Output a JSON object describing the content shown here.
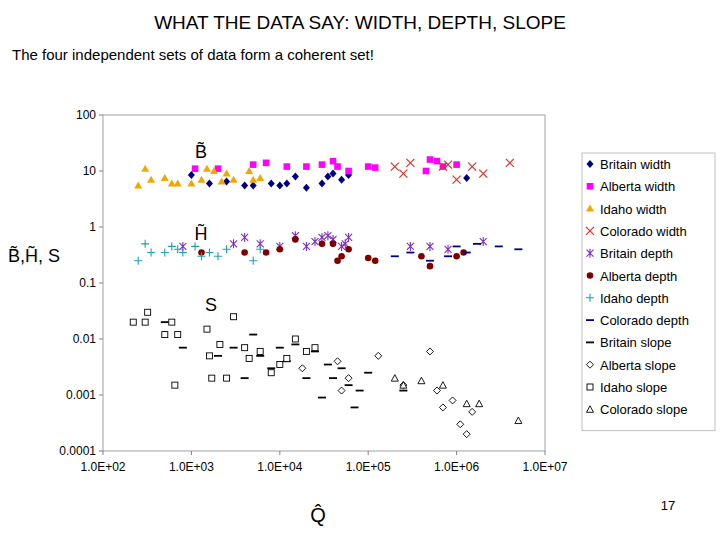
{
  "chart_data": {
    "type": "scatter",
    "title": "WHAT THE DATA SAY: WIDTH, DEPTH, SLOPE",
    "subtitle": "The four independent sets of data form a coherent set!",
    "x_label": "Q̂",
    "y_label": "B̃,H̃, S",
    "annotations": [
      "B̃",
      "H̃",
      "S"
    ],
    "page_number": "17",
    "log": true,
    "grid": false,
    "legend": "right",
    "xlim": [
      100,
      10000000
    ],
    "ylim": [
      0.0001,
      100
    ],
    "xticks": [
      {
        "value": 100,
        "label": "1.0E+02"
      },
      {
        "value": 1000,
        "label": "1.0E+03"
      },
      {
        "value": 10000,
        "label": "1.0E+04"
      },
      {
        "value": 100000,
        "label": "1.0E+05"
      },
      {
        "value": 1000000,
        "label": "1.0E+06"
      },
      {
        "value": 10000000,
        "label": "1.0E+07"
      }
    ],
    "yticks": [
      100,
      10,
      1,
      0.1,
      0.01,
      0.001,
      0.0001
    ],
    "series": [
      {
        "name": "Britain width",
        "color": "#000080",
        "marker": "diamond",
        "x": [
          1000,
          1600,
          2500,
          4000,
          5000,
          8000,
          10000,
          12000,
          15000,
          20000,
          30000,
          35000,
          40000,
          50000,
          60000,
          1300000
        ],
        "values": [
          8.5,
          6,
          6.5,
          5.5,
          5.5,
          6,
          5.5,
          6,
          8,
          5,
          6,
          8,
          9,
          7,
          8.5,
          7.5
        ]
      },
      {
        "name": "Alberta width",
        "color": "#ff00ff",
        "marker": "square",
        "x": [
          1100,
          2000,
          5000,
          7000,
          12000,
          20000,
          30000,
          40000,
          45000,
          60000,
          100000,
          120000,
          450000,
          500000,
          600000,
          700000,
          1000000
        ],
        "values": [
          11,
          11,
          13,
          14,
          12,
          12,
          13,
          15,
          12,
          10,
          12,
          11.5,
          10,
          16,
          15,
          12,
          13
        ]
      },
      {
        "name": "Idaho width",
        "color": "#f0a800",
        "marker": "triangle",
        "x": [
          250,
          300,
          350,
          500,
          600,
          700,
          1000,
          1300,
          1500,
          1800,
          2200,
          2500,
          3000,
          4500,
          5000,
          6000
        ],
        "values": [
          5.5,
          11,
          7,
          7.5,
          6,
          6,
          6,
          7,
          11,
          10,
          6.5,
          9,
          7,
          10,
          7,
          7.5
        ]
      },
      {
        "name": "Colorado width",
        "color": "#e03030",
        "marker": "x",
        "x": [
          200000,
          250000,
          300000,
          700000,
          800000,
          1000000,
          1500000,
          2000000,
          4000000
        ],
        "values": [
          12,
          9,
          14,
          12,
          13,
          7,
          12,
          9,
          14
        ]
      },
      {
        "name": "Britain depth",
        "color": "#8030c0",
        "marker": "asterisk",
        "x": [
          800,
          3000,
          4000,
          6000,
          10000,
          15000,
          20000,
          25000,
          30000,
          35000,
          40000,
          50000,
          55000,
          60000,
          300000,
          500000,
          800000,
          2000000
        ],
        "values": [
          0.45,
          0.5,
          0.65,
          0.5,
          0.45,
          0.7,
          0.45,
          0.55,
          0.65,
          0.7,
          0.6,
          0.45,
          0.5,
          0.65,
          0.45,
          0.45,
          0.4,
          0.55
        ]
      },
      {
        "name": "Alberta depth",
        "color": "#800000",
        "marker": "circle",
        "x": [
          1300,
          4000,
          7000,
          10000,
          15000,
          30000,
          40000,
          45000,
          50000,
          60000,
          100000,
          120000,
          400000,
          500000,
          1000000,
          1200000
        ],
        "values": [
          0.35,
          0.35,
          0.35,
          0.4,
          0.6,
          0.5,
          0.5,
          0.25,
          0.3,
          0.4,
          0.28,
          0.25,
          0.3,
          0.2,
          0.3,
          0.35
        ]
      },
      {
        "name": "Idaho depth",
        "color": "#20a0b0",
        "marker": "plus",
        "x": [
          250,
          300,
          350,
          500,
          600,
          700,
          800,
          1100,
          1300,
          1600,
          2000,
          2500,
          5000,
          6000
        ],
        "values": [
          0.25,
          0.5,
          0.35,
          0.35,
          0.45,
          0.4,
          0.35,
          0.45,
          0.3,
          0.35,
          0.3,
          0.4,
          0.25,
          0.4
        ]
      },
      {
        "name": "Colorado depth",
        "color": "#000080",
        "marker": "dash",
        "x": [
          200000,
          300000,
          500000,
          800000,
          1000000,
          1300000,
          1700000,
          3000000,
          5000000
        ],
        "values": [
          0.3,
          0.35,
          0.25,
          0.3,
          0.45,
          0.35,
          0.5,
          0.45,
          0.4
        ]
      },
      {
        "name": "Britain slope",
        "color": "#000000",
        "marker": "dash",
        "x": [
          500,
          800,
          2000,
          3000,
          4000,
          5000,
          6000,
          8000,
          10000,
          12000,
          15000,
          20000,
          25000,
          30000,
          35000,
          40000,
          50000,
          60000,
          70000,
          80000,
          100000,
          250000
        ],
        "values": [
          0.02,
          0.007,
          0.005,
          0.007,
          0.002,
          0.012,
          0.005,
          0.003,
          0.007,
          0.004,
          0.008,
          0.002,
          0.006,
          0.0009,
          0.0035,
          0.002,
          0.003,
          0.0015,
          0.0006,
          0.0012,
          0.0025,
          0.0012
        ]
      },
      {
        "name": "Alberta slope",
        "color": "#000000",
        "marker": "diamond-open",
        "x": [
          18000,
          45000,
          50000,
          60000,
          130000,
          250000,
          500000,
          600000,
          700000,
          900000,
          1100000,
          1300000,
          1500000
        ],
        "values": [
          0.003,
          0.004,
          0.0012,
          0.002,
          0.005,
          0.0015,
          0.006,
          0.0012,
          0.0006,
          0.0008,
          0.0003,
          0.0002,
          0.0005
        ]
      },
      {
        "name": "Idaho slope",
        "color": "#000000",
        "marker": "square-open",
        "x": [
          220,
          300,
          320,
          500,
          600,
          650,
          700,
          1500,
          1600,
          1700,
          2100,
          2500,
          3000,
          4000,
          4500,
          6000,
          8000,
          10000,
          12000,
          15000,
          20000,
          25000
        ],
        "values": [
          0.02,
          0.02,
          0.03,
          0.012,
          0.02,
          0.0015,
          0.012,
          0.015,
          0.005,
          0.002,
          0.008,
          0.002,
          0.025,
          0.007,
          0.0045,
          0.006,
          0.0025,
          0.0035,
          0.0045,
          0.01,
          0.006,
          0.007
        ]
      },
      {
        "name": "Colorado slope",
        "color": "#000000",
        "marker": "triangle-open",
        "x": [
          200000,
          250000,
          400000,
          700000,
          1300000,
          1800000,
          5000000
        ],
        "values": [
          0.002,
          0.0015,
          0.0018,
          0.0015,
          0.0007,
          0.0007,
          0.00035
        ]
      }
    ]
  }
}
